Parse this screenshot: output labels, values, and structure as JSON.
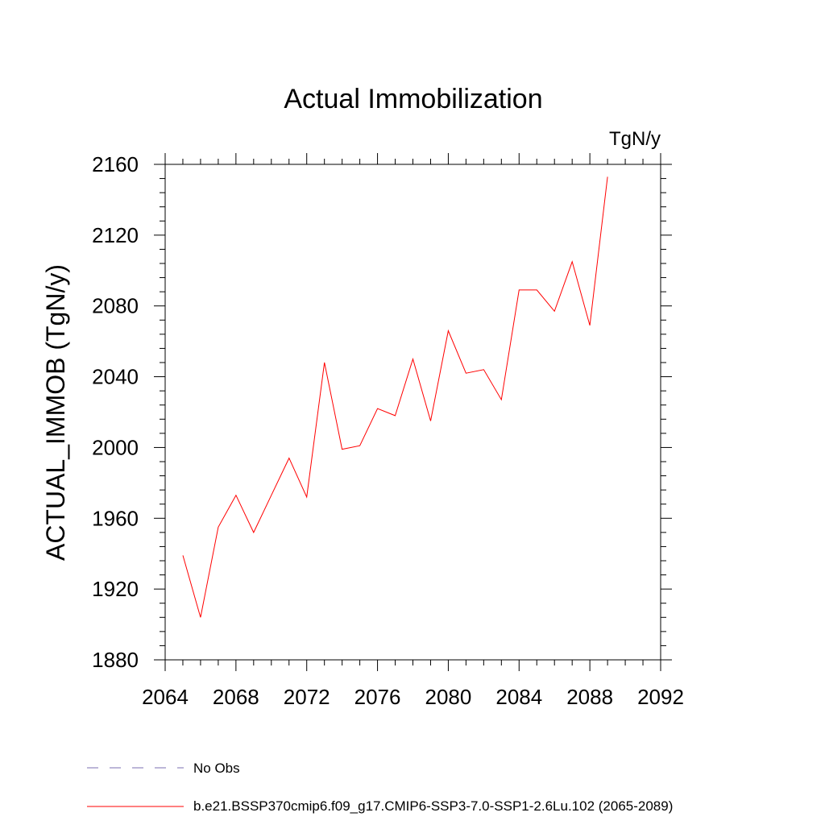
{
  "chart_data": {
    "type": "line",
    "title": "Actual Immobilization",
    "units_label": "TgN/y",
    "xlabel": "",
    "ylabel": "ACTUAL_IMMOB  (TgN/y)",
    "xlim": [
      2064,
      2092
    ],
    "ylim": [
      1880,
      2160
    ],
    "x_ticks": [
      "2064",
      "2068",
      "2072",
      "2076",
      "2080",
      "2084",
      "2088",
      "2092"
    ],
    "y_ticks": [
      "1880",
      "1920",
      "1960",
      "2000",
      "2040",
      "2080",
      "2120",
      "2160"
    ],
    "grid": false,
    "legend_position": "bottom",
    "series": [
      {
        "name": "b.e21.BSSP370cmip6.f09_g17.CMIP6-SSP3-7.0-SSP1-2.6Lu.102 (2065-2089)",
        "color": "#ff0000",
        "x": [
          2065,
          2066,
          2067,
          2068,
          2069,
          2070,
          2071,
          2072,
          2073,
          2074,
          2075,
          2076,
          2077,
          2078,
          2079,
          2080,
          2081,
          2082,
          2083,
          2084,
          2085,
          2086,
          2087,
          2088,
          2089
        ],
        "values": [
          1939,
          1904,
          1955,
          1973,
          1952,
          1973,
          1994,
          1972,
          2048,
          1999,
          2001,
          2022,
          2018,
          2050,
          2015,
          2066,
          2042,
          2044,
          2027,
          2089,
          2089,
          2077,
          2105,
          2069,
          2153
        ]
      }
    ],
    "legend": [
      {
        "label": "No Obs",
        "style": "dashed",
        "color": "#7b6fb0"
      },
      {
        "label": "b.e21.BSSP370cmip6.f09_g17.CMIP6-SSP3-7.0-SSP1-2.6Lu.102 (2065-2089)",
        "style": "solid",
        "color": "#ff0000"
      }
    ]
  }
}
